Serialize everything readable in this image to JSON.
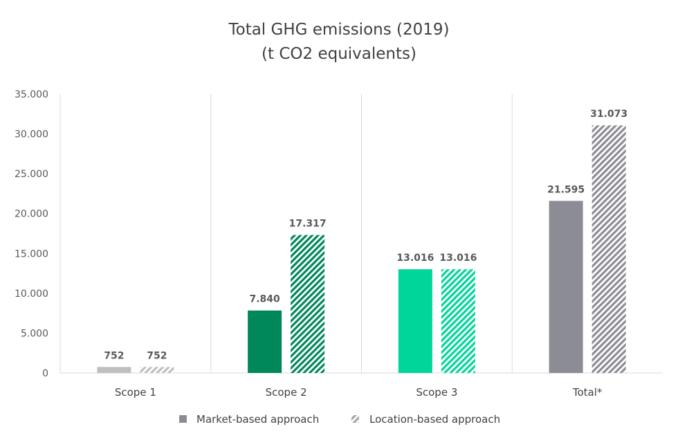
{
  "chart_data": {
    "type": "bar",
    "title": "Total GHG emissions (2019)",
    "subtitle": "(t CO2 equivalents)",
    "xlabel": "",
    "ylabel": "",
    "ylim": [
      0,
      35000
    ],
    "yticks": [
      0,
      5000,
      10000,
      15000,
      20000,
      25000,
      30000,
      35000
    ],
    "ytick_labels": [
      "0",
      "5.000",
      "10.000",
      "15.000",
      "20.000",
      "25.000",
      "30.000",
      "35.000"
    ],
    "grid": false,
    "category_dividers": true,
    "categories": [
      "Scope 1",
      "Scope 2",
      "Scope 3",
      "Total*"
    ],
    "series": [
      {
        "name": "Market-based approach",
        "pattern": "solid",
        "values": [
          752,
          7840,
          13016,
          21595
        ],
        "labels": [
          "752",
          "7.840",
          "13.016",
          "21.595"
        ]
      },
      {
        "name": "Location-based approach",
        "pattern": "hatched",
        "values": [
          752,
          17317,
          13016,
          31073
        ],
        "labels": [
          "752",
          "17.317",
          "13.016",
          "31.073"
        ]
      }
    ],
    "category_colors": [
      "#bfbfbf",
      "#00875a",
      "#00d69a",
      "#8c8c94"
    ],
    "legend": {
      "position": "bottom",
      "items": [
        {
          "label": "Market-based approach",
          "marker": "solid",
          "color": "#8c8c94"
        },
        {
          "label": "Location-based approach",
          "marker": "hatched",
          "color": "#a6a6a6"
        }
      ]
    }
  }
}
